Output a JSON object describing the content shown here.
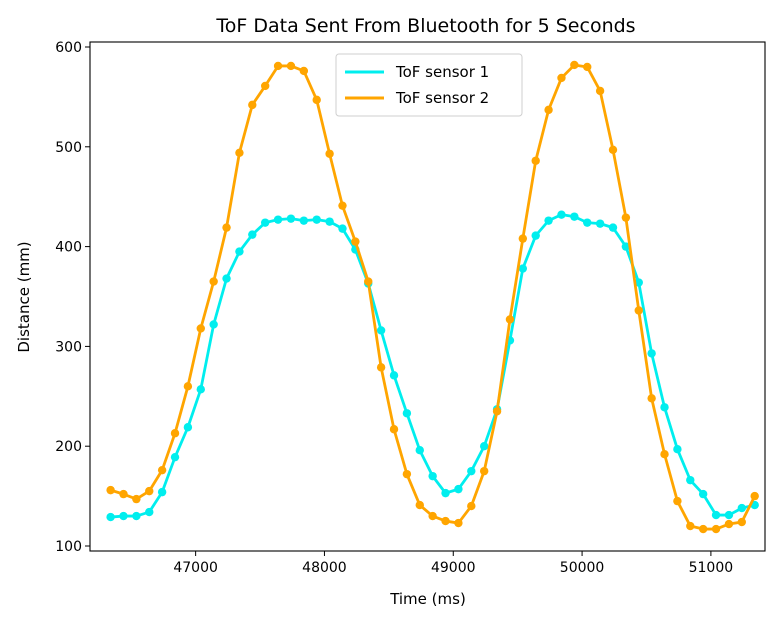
{
  "chart_data": {
    "type": "line",
    "title": "ToF Data Sent From Bluetooth for 5 Seconds",
    "xlabel": "Time (ms)",
    "ylabel": "Distance (mm)",
    "xlim": [
      46180,
      51420
    ],
    "ylim": [
      95,
      605
    ],
    "xticks": [
      47000,
      48000,
      49000,
      50000,
      51000
    ],
    "yticks": [
      100,
      200,
      300,
      400,
      500,
      600
    ],
    "grid": false,
    "legend_position": "top-center",
    "series": [
      {
        "name": "ToF sensor 1",
        "color": "#00eeee",
        "x": [
          46340,
          46440,
          46540,
          46640,
          46740,
          46840,
          46940,
          47040,
          47140,
          47240,
          47340,
          47440,
          47540,
          47640,
          47740,
          47840,
          47940,
          48040,
          48140,
          48240,
          48340,
          48440,
          48540,
          48640,
          48740,
          48840,
          48940,
          49040,
          49140,
          49240,
          49340,
          49440,
          49540,
          49640,
          49740,
          49840,
          49940,
          50040,
          50140,
          50240,
          50340,
          50440,
          50540,
          50640,
          50740,
          50840,
          50940,
          51040,
          51140,
          51240,
          51340
        ],
        "values": [
          129,
          130,
          130,
          134,
          154,
          189,
          219,
          257,
          322,
          368,
          395,
          412,
          424,
          427,
          428,
          426,
          427,
          425,
          418,
          397,
          363,
          316,
          271,
          233,
          196,
          170,
          153,
          157,
          175,
          200,
          237,
          306,
          378,
          411,
          426,
          432,
          430,
          424,
          423,
          419,
          400,
          364,
          293,
          239,
          197,
          166,
          152,
          131,
          131,
          138,
          141
        ]
      },
      {
        "name": "ToF sensor 2",
        "color": "#ffa500",
        "x": [
          46340,
          46440,
          46540,
          46640,
          46740,
          46840,
          46940,
          47040,
          47140,
          47240,
          47340,
          47440,
          47540,
          47640,
          47740,
          47840,
          47940,
          48040,
          48140,
          48240,
          48340,
          48440,
          48540,
          48640,
          48740,
          48840,
          48940,
          49040,
          49140,
          49240,
          49340,
          49440,
          49540,
          49640,
          49740,
          49840,
          49940,
          50040,
          50140,
          50240,
          50340,
          50440,
          50540,
          50640,
          50740,
          50840,
          50940,
          51040,
          51140,
          51240,
          51340
        ],
        "values": [
          156,
          152,
          147,
          155,
          176,
          213,
          260,
          318,
          365,
          419,
          494,
          542,
          561,
          581,
          581,
          576,
          547,
          493,
          441,
          405,
          365,
          279,
          217,
          172,
          141,
          130,
          125,
          123,
          140,
          175,
          235,
          327,
          408,
          486,
          537,
          569,
          582,
          580,
          556,
          497,
          429,
          336,
          248,
          192,
          145,
          120,
          117,
          117,
          122,
          124,
          150
        ]
      }
    ]
  }
}
